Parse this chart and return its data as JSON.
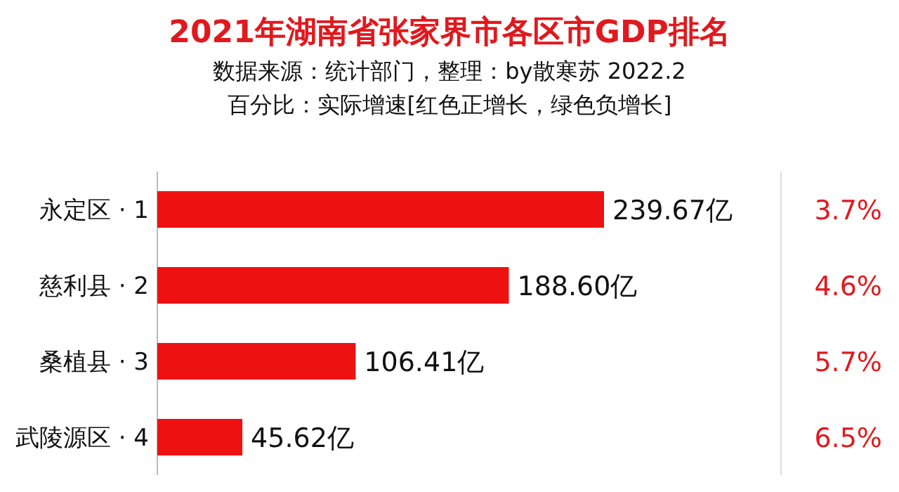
{
  "chart_data": {
    "type": "bar",
    "orientation": "horizontal",
    "title": "2021年湖南省张家界市各区市GDP排名",
    "subtitle": "数据来源：统计部门，整理：by散寒苏  2022.2\n百分比：实际增速[红色正增长，绿色负增长]",
    "categories": [
      "永定区 · 1",
      "慈利县 · 2",
      "桑植县 · 3",
      "武陵源区 · 4"
    ],
    "values": [
      239.67,
      188.6,
      106.41,
      45.62
    ],
    "value_labels": [
      "239.67亿",
      "188.60亿",
      "106.41亿",
      "45.62亿"
    ],
    "color": "#ee1111",
    "annotations": [
      "3.7%",
      "4.6%",
      "5.7%",
      "6.5%"
    ]
  }
}
